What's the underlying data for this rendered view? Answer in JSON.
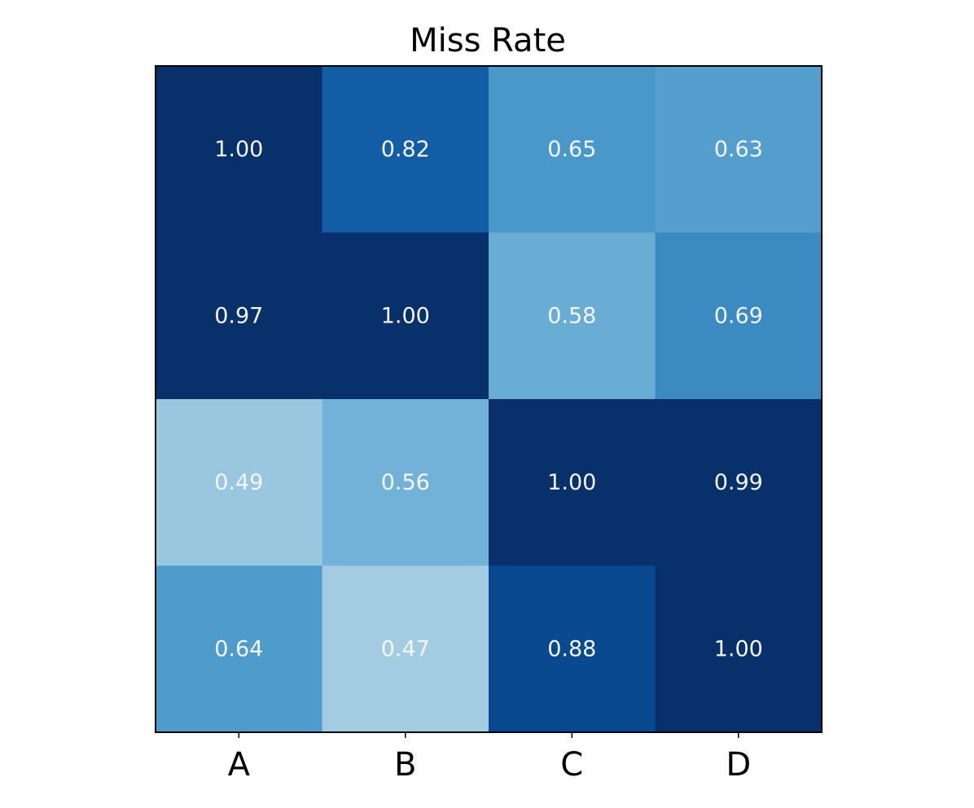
{
  "chart_data": {
    "type": "heatmap",
    "title": "Miss Rate",
    "x_categories": [
      "A",
      "B",
      "C",
      "D"
    ],
    "y_categories": [],
    "values": [
      [
        1.0,
        0.82,
        0.65,
        0.63
      ],
      [
        0.97,
        1.0,
        0.58,
        0.69
      ],
      [
        0.49,
        0.56,
        1.0,
        0.99
      ],
      [
        0.64,
        0.47,
        0.88,
        1.0
      ]
    ],
    "value_format": "0.00",
    "colormap": "Blues",
    "color_range": [
      0.0,
      1.0
    ],
    "grid": false,
    "legend": "none",
    "colors": {
      "cell_text": "#f4f4f4",
      "frame": "#000000"
    }
  }
}
